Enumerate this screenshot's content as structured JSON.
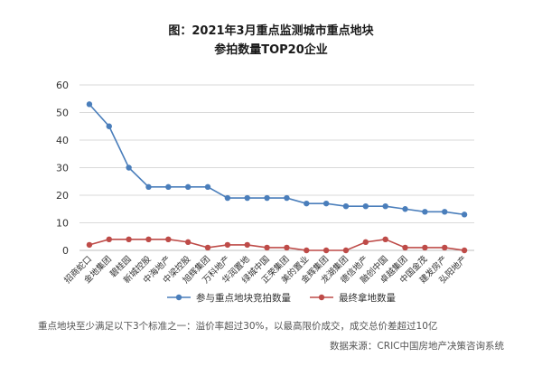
{
  "chart_data": {
    "type": "line",
    "title": "图：2021年3月重点监测城市重点地块",
    "subtitle": "参拍数量TOP20企业",
    "categories": [
      "招商蛇口",
      "金地集团",
      "碧桂园",
      "新城控股",
      "中海地产",
      "中梁控股",
      "旭辉集团",
      "万科地产",
      "华润置地",
      "绿城中国",
      "正荣集团",
      "美的置业",
      "金辉集团",
      "龙湖集团",
      "德信地产",
      "融创中国",
      "卓越集团",
      "中国金茂",
      "建发房产",
      "弘阳地产"
    ],
    "series": [
      {
        "name": "参与重点地块竞拍数量",
        "color": "#4a7ebb",
        "values": [
          53,
          45,
          30,
          23,
          23,
          23,
          23,
          19,
          19,
          19,
          19,
          17,
          17,
          16,
          16,
          16,
          15,
          14,
          14,
          13
        ]
      },
      {
        "name": "最终拿地数量",
        "color": "#be4b48",
        "values": [
          2,
          4,
          4,
          4,
          4,
          3,
          1,
          2,
          2,
          1,
          1,
          0,
          0,
          0,
          3,
          4,
          1,
          1,
          1,
          0
        ]
      }
    ],
    "ylim": [
      0,
      60
    ],
    "yticks": [
      0,
      10,
      20,
      30,
      40,
      50,
      60
    ],
    "grid": true,
    "legend": "bottom"
  },
  "notes": {
    "criteria": "重点地块至少满足以下3个标准之一：溢价率超过30%，以最高限价成交，成交总价差超过10亿",
    "source": "数据来源：CRIC中国房地产决策咨询系统"
  }
}
